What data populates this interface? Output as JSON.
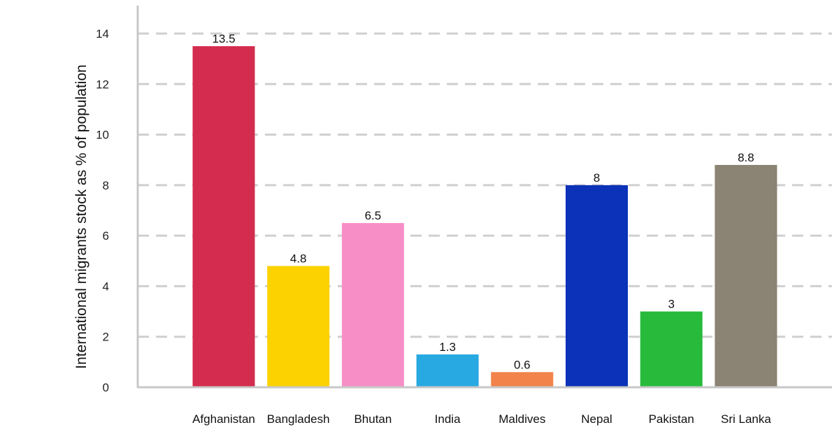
{
  "chart_data": {
    "type": "bar",
    "title": "",
    "xlabel": "",
    "ylabel": "International migrants stock as % of population",
    "categories": [
      "Afghanistan",
      "Bangladesh",
      "Bhutan",
      "India",
      "Maldives",
      "Nepal",
      "Pakistan",
      "Sri Lanka"
    ],
    "values": [
      13.5,
      4.8,
      6.5,
      1.3,
      0.6,
      8,
      3,
      8.8
    ],
    "value_labels": [
      "13.5",
      "4.8",
      "6.5",
      "1.3",
      "0.6",
      "8",
      "3",
      "8.8"
    ],
    "colors": [
      "#d42c4e",
      "#fcd200",
      "#f78fc6",
      "#29a9e1",
      "#f2834a",
      "#0b32b8",
      "#28bb3b",
      "#8b8373"
    ],
    "ylim": [
      0,
      14
    ],
    "yticks": [
      0,
      2,
      4,
      6,
      8,
      10,
      12,
      14
    ],
    "grid": true,
    "grid_style": "dashed",
    "legend": "none"
  }
}
